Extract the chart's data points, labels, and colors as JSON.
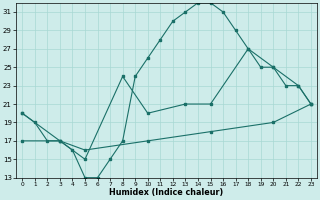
{
  "xlabel": "Humidex (Indice chaleur)",
  "bg_color": "#ceecea",
  "line_color": "#1a7068",
  "grid_color": "#a8d8d4",
  "xlim_min": -0.5,
  "xlim_max": 23.5,
  "ylim_min": 13,
  "ylim_max": 32,
  "xticks": [
    0,
    1,
    2,
    3,
    4,
    5,
    6,
    7,
    8,
    9,
    10,
    11,
    12,
    13,
    14,
    15,
    16,
    17,
    18,
    19,
    20,
    21,
    22,
    23
  ],
  "yticks": [
    13,
    15,
    17,
    19,
    21,
    23,
    25,
    27,
    29,
    31
  ],
  "line1_x": [
    0,
    1,
    2,
    3,
    4,
    5,
    6,
    7,
    8,
    9,
    10,
    11,
    12,
    13,
    14,
    15,
    16,
    17,
    18,
    19,
    20,
    21,
    22,
    23
  ],
  "line1_y": [
    20,
    19,
    17,
    17,
    16,
    13,
    13,
    15,
    17,
    24,
    26,
    28,
    30,
    31,
    32,
    32,
    31,
    29,
    27,
    25,
    25,
    23,
    23,
    21
  ],
  "line2_x": [
    0,
    3,
    5,
    8,
    10,
    13,
    15,
    18,
    20,
    22,
    23
  ],
  "line2_y": [
    20,
    17,
    15,
    24,
    20,
    21,
    21,
    27,
    25,
    23,
    21
  ],
  "line3_x": [
    0,
    3,
    5,
    10,
    15,
    20,
    23
  ],
  "line3_y": [
    17,
    17,
    16,
    17,
    18,
    19,
    21
  ]
}
